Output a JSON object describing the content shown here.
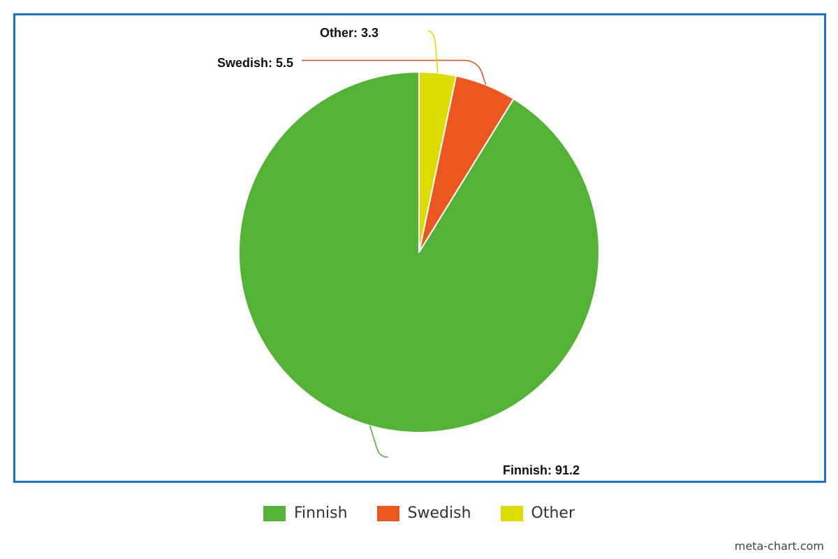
{
  "chart_data": {
    "type": "pie",
    "title": "",
    "slices": [
      {
        "name": "Finnish",
        "value": 91.2,
        "label": "Finnish: 91.2",
        "color": "#52b335"
      },
      {
        "name": "Swedish",
        "value": 5.5,
        "label": "Swedish: 5.5",
        "color": "#ec561f"
      },
      {
        "name": "Other",
        "value": 3.3,
        "label": "Other: 3.3",
        "color": "#dcdc00"
      }
    ],
    "start_angle_deg": 0,
    "direction": "counterclockwise",
    "legend_position": "bottom"
  },
  "legend": {
    "items": [
      {
        "label": "Finnish",
        "color": "#52b335"
      },
      {
        "label": "Swedish",
        "color": "#ec561f"
      },
      {
        "label": "Other",
        "color": "#dcdc00"
      }
    ]
  },
  "frame_color": "#1a73c4",
  "credit": "meta-chart.com"
}
